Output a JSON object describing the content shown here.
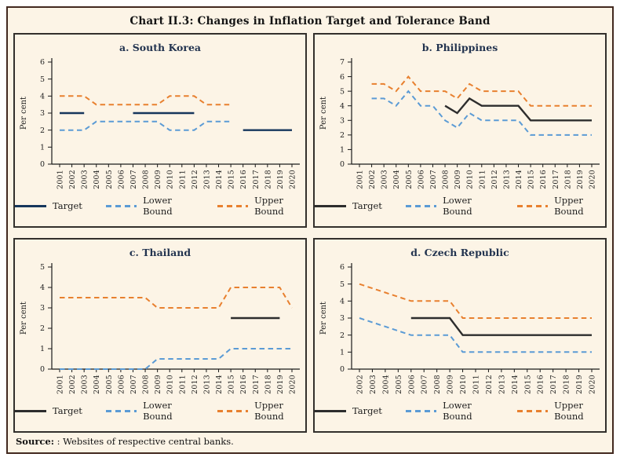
{
  "figure": {
    "title": "Chart II.3: Changes in Inflation Target and Tolerance Band",
    "source_label": "Source:",
    "source_text": " : Websites of respective central banks.",
    "legend": {
      "target": "Target",
      "lower": "Lower Bound",
      "upper": "Upper Bound"
    }
  },
  "colors": {
    "background": "#fcf4e6",
    "outer_border": "#42291f",
    "panel_border": "#33302c",
    "target_navy": "#16365c",
    "target_black": "#2d2d2d",
    "lower_bound_blue": "#5b9bd5",
    "upper_bound_orange": "#e8802f"
  },
  "chart_data": [
    {
      "type": "line",
      "title": "a. South Korea",
      "ylabel": "Per cent",
      "ylim": [
        0,
        6
      ],
      "grid": false,
      "legend_position": "bottom",
      "x": [
        2001,
        2002,
        2003,
        2004,
        2005,
        2006,
        2007,
        2008,
        2009,
        2010,
        2011,
        2012,
        2013,
        2014,
        2015,
        2016,
        2017,
        2018,
        2019,
        2020
      ],
      "series": [
        {
          "name": "Target",
          "color": "#16365c",
          "style": "solid",
          "values": [
            3,
            3,
            3,
            null,
            null,
            null,
            3,
            3,
            3,
            3,
            3,
            3,
            null,
            null,
            null,
            2,
            2,
            2,
            2,
            2
          ]
        },
        {
          "name": "Lower Bound",
          "color": "#5b9bd5",
          "style": "dashed",
          "values": [
            2,
            2,
            2,
            2.5,
            2.5,
            2.5,
            2.5,
            2.5,
            2.5,
            2,
            2,
            2,
            2.5,
            2.5,
            2.5,
            null,
            null,
            null,
            null,
            null
          ]
        },
        {
          "name": "Upper Bound",
          "color": "#e8802f",
          "style": "dashed",
          "values": [
            4,
            4,
            4,
            3.5,
            3.5,
            3.5,
            3.5,
            3.5,
            3.5,
            4,
            4,
            4,
            3.5,
            3.5,
            3.5,
            null,
            null,
            null,
            null,
            null
          ]
        }
      ]
    },
    {
      "type": "line",
      "title": "b. Philippines",
      "ylabel": "Per cent",
      "ylim": [
        0,
        7
      ],
      "grid": false,
      "legend_position": "bottom",
      "x": [
        2001,
        2002,
        2003,
        2004,
        2005,
        2006,
        2007,
        2008,
        2009,
        2010,
        2011,
        2012,
        2013,
        2014,
        2015,
        2016,
        2017,
        2018,
        2019,
        2020
      ],
      "series": [
        {
          "name": "Target",
          "color": "#2d2d2d",
          "style": "solid",
          "values": [
            null,
            null,
            null,
            null,
            null,
            null,
            null,
            4,
            3.5,
            4.5,
            4,
            4,
            4,
            4,
            3,
            3,
            3,
            3,
            3,
            3
          ]
        },
        {
          "name": "Lower Bound",
          "color": "#5b9bd5",
          "style": "dashed",
          "values": [
            null,
            4.5,
            4.5,
            4,
            5,
            4,
            4,
            3,
            2.5,
            3.5,
            3,
            3,
            3,
            3,
            2,
            2,
            2,
            2,
            2,
            2
          ]
        },
        {
          "name": "Upper Bound",
          "color": "#e8802f",
          "style": "dashed",
          "values": [
            null,
            5.5,
            5.5,
            5,
            6,
            5,
            5,
            5,
            4.5,
            5.5,
            5,
            5,
            5,
            5,
            4,
            4,
            4,
            4,
            4,
            4
          ]
        }
      ]
    },
    {
      "type": "line",
      "title": "c. Thailand",
      "ylabel": "Per cent",
      "ylim": [
        0,
        5
      ],
      "grid": false,
      "legend_position": "bottom",
      "x": [
        2001,
        2002,
        2003,
        2004,
        2005,
        2006,
        2007,
        2008,
        2009,
        2010,
        2011,
        2012,
        2013,
        2014,
        2015,
        2016,
        2017,
        2018,
        2019,
        2020
      ],
      "series": [
        {
          "name": "Target",
          "color": "#2d2d2d",
          "style": "solid",
          "values": [
            null,
            null,
            null,
            null,
            null,
            null,
            null,
            null,
            null,
            null,
            null,
            null,
            null,
            null,
            2.5,
            2.5,
            2.5,
            2.5,
            2.5,
            null
          ]
        },
        {
          "name": "Lower Bound",
          "color": "#5b9bd5",
          "style": "dashed",
          "values": [
            0,
            0,
            0,
            0,
            0,
            0,
            0,
            0,
            0.5,
            0.5,
            0.5,
            0.5,
            0.5,
            0.5,
            1,
            1,
            1,
            1,
            1,
            1
          ]
        },
        {
          "name": "Upper Bound",
          "color": "#e8802f",
          "style": "dashed",
          "values": [
            3.5,
            3.5,
            3.5,
            3.5,
            3.5,
            3.5,
            3.5,
            3.5,
            3,
            3,
            3,
            3,
            3,
            3,
            4,
            4,
            4,
            4,
            4,
            3
          ]
        }
      ]
    },
    {
      "type": "line",
      "title": "d. Czech Republic",
      "ylabel": "Per cent",
      "ylim": [
        0,
        6
      ],
      "grid": false,
      "legend_position": "bottom",
      "x": [
        2002,
        2003,
        2004,
        2005,
        2006,
        2007,
        2008,
        2009,
        2010,
        2011,
        2012,
        2013,
        2014,
        2015,
        2016,
        2017,
        2018,
        2019,
        2020
      ],
      "series": [
        {
          "name": "Target",
          "color": "#2d2d2d",
          "style": "solid",
          "values": [
            null,
            null,
            null,
            null,
            3,
            3,
            3,
            3,
            2,
            2,
            2,
            2,
            2,
            2,
            2,
            2,
            2,
            2,
            2
          ]
        },
        {
          "name": "Lower Bound",
          "color": "#5b9bd5",
          "style": "dashed",
          "values": [
            3,
            2.75,
            2.5,
            2.25,
            2,
            2,
            2,
            2,
            1,
            1,
            1,
            1,
            1,
            1,
            1,
            1,
            1,
            1,
            1
          ]
        },
        {
          "name": "Upper Bound",
          "color": "#e8802f",
          "style": "dashed",
          "values": [
            5,
            4.75,
            4.5,
            4.25,
            4,
            4,
            4,
            4,
            3,
            3,
            3,
            3,
            3,
            3,
            3,
            3,
            3,
            3,
            3
          ]
        }
      ]
    }
  ]
}
